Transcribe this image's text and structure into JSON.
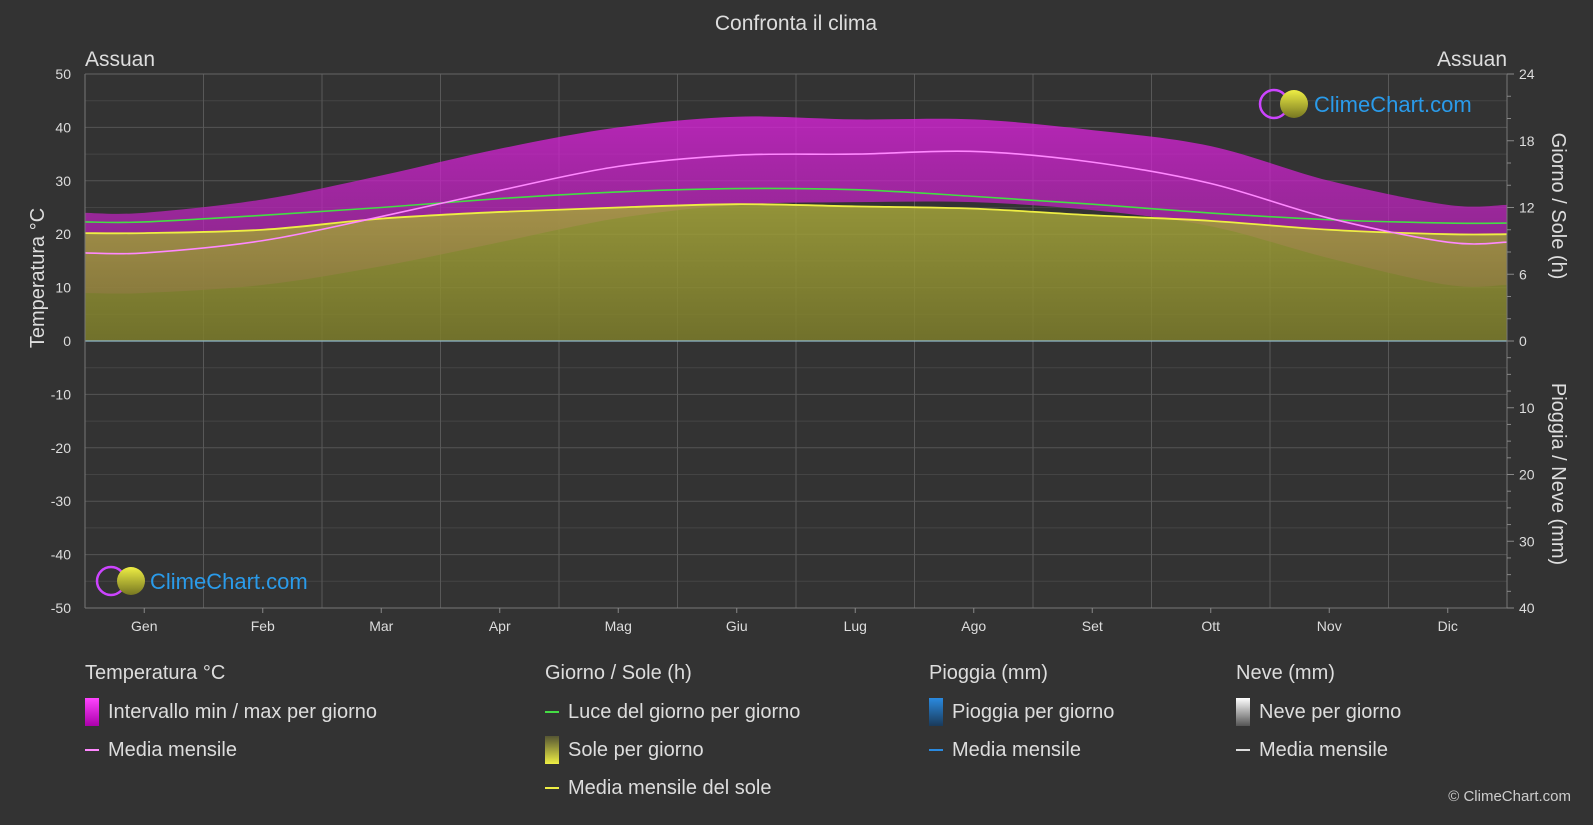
{
  "title": "Confronta il clima",
  "location_left": "Assuan",
  "location_right": "Assuan",
  "copyright": "© ClimeChart.com",
  "watermark": "ClimeChart.com",
  "colors": {
    "background": "#333333",
    "temp_range": "#cc22cc",
    "temp_mean": "#ff88ff",
    "daylight": "#44dd44",
    "sunshine": "#9a9a2e",
    "sunshine_mean": "#eeee44",
    "rain": "#2a8ae0",
    "snow": "#dddddd",
    "brand": "#2a9bea"
  },
  "legend": {
    "temperature": {
      "title": "Temperatura °C",
      "range_label": "Intervallo min / max per giorno",
      "mean_label": "Media mensile"
    },
    "daylight": {
      "title": "Giorno / Sole (h)",
      "daylight_label": "Luce del giorno per giorno",
      "sun_label": "Sole per giorno",
      "sun_mean_label": "Media mensile del sole"
    },
    "rain": {
      "title": "Pioggia (mm)",
      "rain_label": "Pioggia per giorno",
      "mean_label": "Media mensile"
    },
    "snow": {
      "title": "Neve (mm)",
      "snow_label": "Neve per giorno",
      "mean_label": "Media mensile"
    }
  },
  "chart_data": {
    "type": "area",
    "title": "Confronta il clima",
    "categories": [
      "Gen",
      "Feb",
      "Mar",
      "Apr",
      "Mag",
      "Giu",
      "Lug",
      "Ago",
      "Set",
      "Ott",
      "Nov",
      "Dic"
    ],
    "y_left": {
      "label": "Temperatura °C",
      "ylim": [
        -50,
        50
      ],
      "ticks": [
        50,
        40,
        30,
        20,
        10,
        0,
        -10,
        -20,
        -30,
        -40,
        -50
      ]
    },
    "y_right_top": {
      "label": "Giorno / Sole (h)",
      "ylim": [
        0,
        24
      ],
      "ticks": [
        24,
        18,
        12,
        6,
        0
      ]
    },
    "y_right_bottom": {
      "label": "Pioggia / Neve (mm)",
      "ylim": [
        0,
        40
      ],
      "ticks": [
        10,
        20,
        30,
        40
      ]
    },
    "grid": true,
    "series": [
      {
        "name": "Intervallo min / max per giorno",
        "axis": "temperature",
        "kind": "range",
        "min": [
          9,
          10.5,
          14,
          18.5,
          23,
          25.5,
          26,
          26,
          24.5,
          21.5,
          15.5,
          10.5
        ],
        "max": [
          24,
          26.5,
          31,
          36,
          40,
          42,
          41.5,
          41.5,
          39.5,
          36.5,
          30,
          25.5
        ]
      },
      {
        "name": "Media mensile",
        "axis": "temperature",
        "kind": "line",
        "values": [
          16.5,
          18.8,
          23.3,
          28.2,
          32.7,
          34.8,
          35.0,
          35.5,
          33.5,
          29.5,
          23.0,
          18.5
        ]
      },
      {
        "name": "Luce del giorno per giorno",
        "axis": "hours",
        "kind": "line",
        "values": [
          10.7,
          11.3,
          12.0,
          12.8,
          13.4,
          13.7,
          13.6,
          13.0,
          12.3,
          11.5,
          10.9,
          10.6
        ]
      },
      {
        "name": "Sole per giorno",
        "axis": "hours",
        "kind": "area",
        "values": [
          9.7,
          10.0,
          11.0,
          11.6,
          12.0,
          12.3,
          12.1,
          11.9,
          11.3,
          10.8,
          10.0,
          9.6
        ]
      },
      {
        "name": "Media mensile del sole",
        "axis": "hours",
        "kind": "line",
        "values": [
          9.7,
          10.0,
          11.0,
          11.6,
          12.0,
          12.3,
          12.1,
          11.9,
          11.3,
          10.8,
          10.0,
          9.6
        ]
      },
      {
        "name": "Pioggia per giorno",
        "axis": "precipitation",
        "kind": "bar",
        "values": [
          0,
          0,
          0,
          0,
          0,
          0,
          0,
          0,
          0,
          0,
          0,
          0
        ]
      },
      {
        "name": "Neve per giorno",
        "axis": "precipitation",
        "kind": "bar",
        "values": [
          0,
          0,
          0,
          0,
          0,
          0,
          0,
          0,
          0,
          0,
          0,
          0
        ]
      }
    ]
  }
}
